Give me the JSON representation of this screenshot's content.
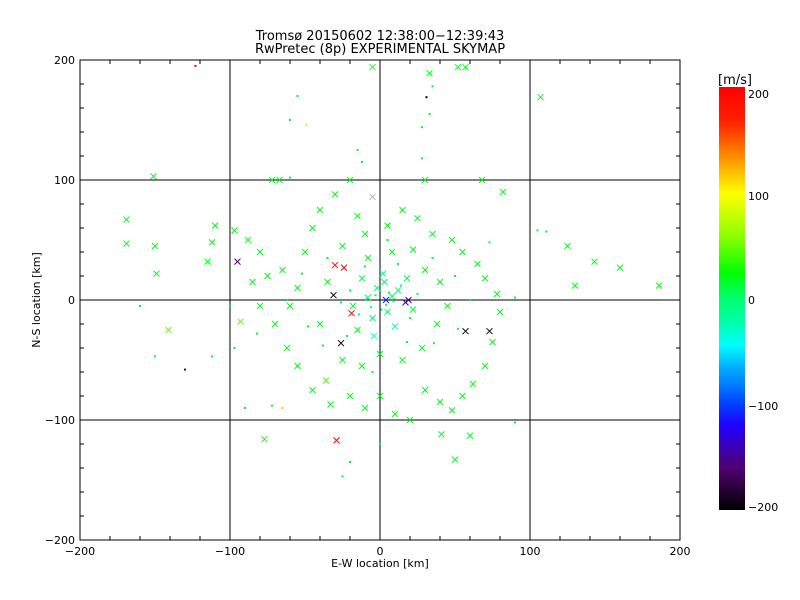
{
  "chart_data": {
    "type": "scatter",
    "title": "Tromsø 20150602 12:38:00−12:39:43",
    "subtitle": "RwPretec (8p) EXPERIMENTAL SKYMAP",
    "xlabel": "E-W location [km]",
    "ylabel": "N-S location [km]",
    "xlim": [
      -200,
      200
    ],
    "ylim": [
      -200,
      200
    ],
    "xticks": [
      "−200",
      "−100",
      "0",
      "100",
      "200"
    ],
    "yticks": [
      "−200",
      "−100",
      "0",
      "100",
      "200"
    ],
    "xtick_values": [
      -200,
      -100,
      0,
      100,
      200
    ],
    "ytick_values": [
      -200,
      -100,
      0,
      100,
      200
    ],
    "grid": true,
    "colorbar": {
      "label": "[m/s]",
      "range": [
        -200,
        200
      ],
      "ticks": [
        "200",
        "100",
        "0",
        "−100",
        "−200"
      ],
      "tick_values": [
        200,
        100,
        0,
        -100,
        -200
      ]
    },
    "point_fields": [
      "x_km",
      "y_km",
      "velocity_m_s",
      "marker_cross"
    ],
    "points": [
      [
        -123,
        195,
        190,
        0
      ],
      [
        -49,
        146,
        110,
        0
      ],
      [
        31,
        169,
        -200,
        0
      ],
      [
        -5,
        194,
        20,
        1
      ],
      [
        33,
        189,
        20,
        1
      ],
      [
        107,
        169,
        20,
        1
      ],
      [
        52,
        194,
        20,
        1
      ],
      [
        57,
        194,
        20,
        1
      ],
      [
        -130,
        -58,
        -150,
        0
      ],
      [
        186,
        12,
        20,
        1
      ],
      [
        160,
        27,
        20,
        1
      ],
      [
        143,
        32,
        20,
        1
      ],
      [
        130,
        12,
        20,
        1
      ],
      [
        125,
        45,
        20,
        1
      ],
      [
        111,
        57,
        20,
        0
      ],
      [
        -169,
        67,
        20,
        1
      ],
      [
        -169,
        47,
        20,
        1
      ],
      [
        -150,
        45,
        20,
        1
      ],
      [
        -149,
        22,
        20,
        1
      ],
      [
        -141,
        -25,
        50,
        1
      ],
      [
        -151,
        103,
        20,
        1
      ],
      [
        -95,
        32,
        -160,
        1
      ],
      [
        -30,
        29,
        190,
        1
      ],
      [
        -24,
        27,
        195,
        1
      ],
      [
        -19,
        -11,
        195,
        1
      ],
      [
        -29,
        -117,
        195,
        1
      ],
      [
        -77,
        -116,
        20,
        1
      ],
      [
        57,
        -26,
        -200,
        1
      ],
      [
        73,
        -26,
        -190,
        1
      ],
      [
        -26,
        -36,
        -200,
        1
      ],
      [
        -31,
        4,
        -200,
        1
      ],
      [
        4,
        0,
        -110,
        1
      ],
      [
        17,
        -2,
        -130,
        1
      ],
      [
        19,
        0,
        -150,
        1
      ],
      [
        50,
        -133,
        15,
        1
      ],
      [
        41,
        -112,
        15,
        1
      ],
      [
        60,
        -113,
        15,
        1
      ],
      [
        -33,
        -87,
        15,
        1
      ],
      [
        -36,
        -67,
        40,
        1
      ],
      [
        -93,
        -18,
        50,
        1
      ],
      [
        -5,
        86,
        null,
        1
      ],
      [
        -20,
        100,
        20,
        1
      ],
      [
        -67,
        100,
        20,
        1
      ],
      [
        -72,
        100,
        20,
        1
      ],
      [
        -60,
        102,
        20,
        0
      ],
      [
        30,
        100,
        20,
        1
      ],
      [
        68,
        100,
        20,
        1
      ],
      [
        82,
        90,
        20,
        1
      ],
      [
        -110,
        62,
        20,
        1
      ],
      [
        -112,
        48,
        20,
        1
      ],
      [
        -115,
        32,
        20,
        1
      ],
      [
        -97,
        58,
        20,
        1
      ],
      [
        -88,
        50,
        20,
        1
      ],
      [
        -80,
        40,
        20,
        1
      ],
      [
        -75,
        20,
        20,
        1
      ],
      [
        -65,
        25,
        20,
        1
      ],
      [
        -55,
        10,
        20,
        1
      ],
      [
        -50,
        40,
        20,
        1
      ],
      [
        -45,
        60,
        20,
        1
      ],
      [
        -40,
        75,
        20,
        1
      ],
      [
        -30,
        88,
        20,
        1
      ],
      [
        -15,
        70,
        20,
        1
      ],
      [
        -10,
        55,
        20,
        1
      ],
      [
        5,
        62,
        20,
        1
      ],
      [
        15,
        75,
        20,
        1
      ],
      [
        25,
        68,
        20,
        1
      ],
      [
        35,
        55,
        20,
        1
      ],
      [
        48,
        50,
        20,
        1
      ],
      [
        55,
        40,
        20,
        1
      ],
      [
        65,
        30,
        20,
        1
      ],
      [
        70,
        18,
        20,
        1
      ],
      [
        78,
        5,
        20,
        1
      ],
      [
        80,
        -10,
        20,
        1
      ],
      [
        75,
        -35,
        20,
        1
      ],
      [
        70,
        -55,
        20,
        1
      ],
      [
        62,
        -70,
        20,
        1
      ],
      [
        55,
        -80,
        20,
        1
      ],
      [
        48,
        -92,
        20,
        1
      ],
      [
        40,
        -85,
        20,
        1
      ],
      [
        30,
        -75,
        20,
        1
      ],
      [
        20,
        -100,
        20,
        1
      ],
      [
        10,
        -95,
        20,
        1
      ],
      [
        0,
        -80,
        20,
        1
      ],
      [
        -10,
        -90,
        20,
        1
      ],
      [
        -20,
        -80,
        20,
        1
      ],
      [
        -45,
        -75,
        20,
        1
      ],
      [
        -55,
        -55,
        20,
        1
      ],
      [
        -62,
        -40,
        20,
        1
      ],
      [
        -70,
        -20,
        20,
        1
      ],
      [
        -80,
        -5,
        20,
        1
      ],
      [
        -85,
        15,
        20,
        1
      ],
      [
        -60,
        -5,
        20,
        1
      ],
      [
        -40,
        -20,
        20,
        1
      ],
      [
        -35,
        15,
        20,
        1
      ],
      [
        -25,
        45,
        20,
        1
      ],
      [
        -8,
        35,
        20,
        1
      ],
      [
        8,
        40,
        20,
        1
      ],
      [
        22,
        42,
        20,
        1
      ],
      [
        30,
        25,
        20,
        1
      ],
      [
        40,
        15,
        20,
        1
      ],
      [
        45,
        -5,
        20,
        1
      ],
      [
        38,
        -20,
        20,
        1
      ],
      [
        28,
        -40,
        20,
        1
      ],
      [
        15,
        -50,
        20,
        1
      ],
      [
        0,
        -45,
        20,
        1
      ],
      [
        -12,
        -55,
        20,
        1
      ],
      [
        -25,
        -50,
        20,
        1
      ],
      [
        -15,
        -25,
        20,
        1
      ],
      [
        -5,
        -15,
        0,
        1
      ],
      [
        5,
        -10,
        0,
        1
      ],
      [
        12,
        8,
        0,
        1
      ],
      [
        -2,
        10,
        0,
        1
      ],
      [
        -8,
        2,
        5,
        1
      ],
      [
        8,
        3,
        5,
        1
      ],
      [
        3,
        15,
        5,
        1
      ],
      [
        -12,
        18,
        10,
        1
      ],
      [
        18,
        18,
        10,
        1
      ],
      [
        22,
        -8,
        10,
        1
      ],
      [
        -18,
        -5,
        10,
        1
      ],
      [
        10,
        -22,
        -30,
        1
      ],
      [
        -4,
        -30,
        -40,
        1
      ],
      [
        2,
        22,
        -20,
        1
      ],
      [
        -6,
        -6,
        0,
        0
      ],
      [
        6,
        6,
        0,
        0
      ],
      [
        -3,
        4,
        0,
        0
      ],
      [
        4,
        -4,
        0,
        0
      ],
      [
        9,
        -1,
        0,
        0
      ],
      [
        -9,
        1,
        0,
        0
      ],
      [
        0,
        8,
        0,
        0
      ],
      [
        1,
        -8,
        0,
        0
      ],
      [
        14,
        12,
        0,
        0
      ],
      [
        -14,
        -12,
        0,
        0
      ],
      [
        -20,
        8,
        10,
        0
      ],
      [
        20,
        -15,
        10,
        0
      ],
      [
        25,
        5,
        10,
        0
      ],
      [
        -26,
        -2,
        10,
        0
      ],
      [
        12,
        30,
        15,
        0
      ],
      [
        -10,
        28,
        15,
        0
      ],
      [
        -22,
        -30,
        15,
        0
      ],
      [
        18,
        -35,
        15,
        0
      ],
      [
        35,
        35,
        20,
        0
      ],
      [
        -35,
        35,
        20,
        0
      ],
      [
        -38,
        -38,
        20,
        0
      ],
      [
        36,
        -36,
        20,
        0
      ],
      [
        50,
        20,
        20,
        0
      ],
      [
        -52,
        22,
        20,
        0
      ],
      [
        -48,
        -22,
        20,
        0
      ],
      [
        52,
        -24,
        20,
        0
      ],
      [
        5,
        50,
        20,
        0
      ],
      [
        -5,
        -60,
        20,
        0
      ],
      [
        60,
        0,
        20,
        0
      ],
      [
        -62,
        0,
        20,
        0
      ],
      [
        -90,
        -90,
        20,
        0
      ],
      [
        -72,
        -88,
        20,
        0
      ],
      [
        90,
        -102,
        20,
        0
      ],
      [
        -160,
        -5,
        20,
        0
      ],
      [
        -150,
        -47,
        20,
        0
      ],
      [
        -112,
        -47,
        20,
        0
      ],
      [
        -97,
        -40,
        20,
        0
      ],
      [
        105,
        58,
        20,
        0
      ],
      [
        -100,
        -5,
        20,
        0
      ],
      [
        -65,
        -90,
        120,
        0
      ],
      [
        -20,
        -135,
        20,
        0
      ],
      [
        -25,
        -147,
        20,
        0
      ],
      [
        0,
        -120,
        20,
        0
      ],
      [
        -55,
        170,
        20,
        0
      ],
      [
        -60,
        150,
        20,
        0
      ],
      [
        28,
        144,
        20,
        0
      ],
      [
        35,
        178,
        20,
        0
      ],
      [
        33,
        155,
        20,
        0
      ],
      [
        -15,
        125,
        20,
        0
      ],
      [
        28,
        118,
        20,
        0
      ],
      [
        -12,
        115,
        20,
        0
      ],
      [
        73,
        48,
        20,
        0
      ],
      [
        90,
        2,
        20,
        0
      ],
      [
        -82,
        -28,
        20,
        0
      ]
    ]
  }
}
